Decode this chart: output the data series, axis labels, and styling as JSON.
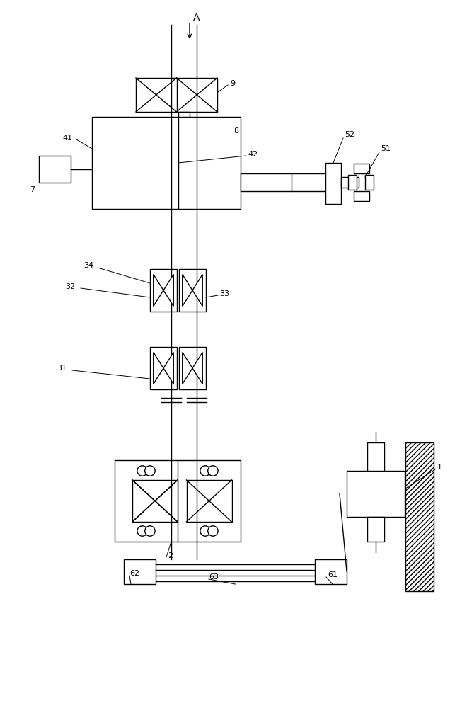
{
  "bg_color": "#ffffff",
  "lc": "#000000",
  "lw": 1.0,
  "fig_w": 6.6,
  "fig_h": 10.0
}
